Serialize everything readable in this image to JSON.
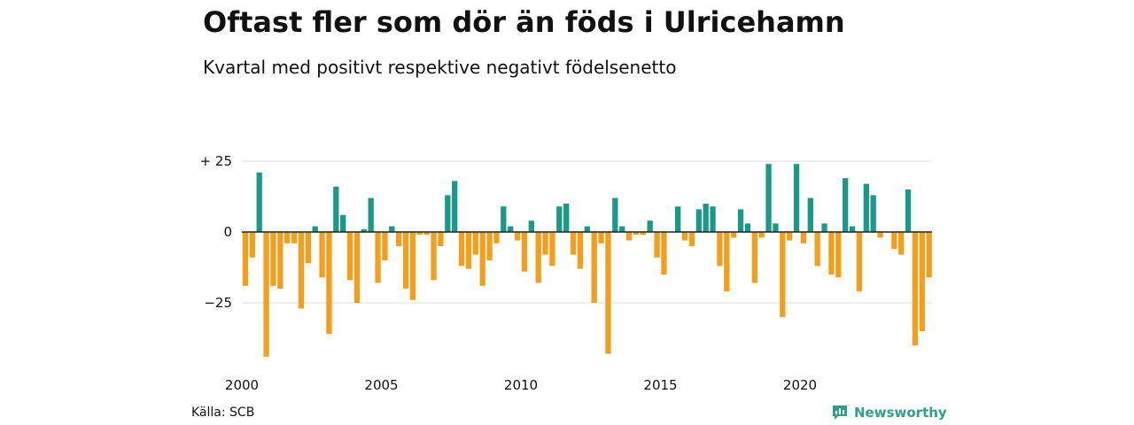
{
  "header": {
    "title": "Oftast fler som dör än föds i Ulricehamn",
    "subtitle": "Kvartal med positivt respektive negativt födelsenetto"
  },
  "footer": {
    "source": "Källa: SCB",
    "brand": "Newsworthy",
    "brand_icon": "newsworthy-logo-icon"
  },
  "colors": {
    "positive": "#1a9988",
    "negative": "#f59e1b",
    "grid": "#dddddd",
    "axis": "#222222"
  },
  "chart_data": {
    "type": "bar",
    "title": "Oftast fler som dör än föds i Ulricehamn",
    "subtitle": "Kvartal med positivt respektive negativt födelsenetto",
    "x_start": "2000-Q1",
    "values": [
      -19,
      -9,
      21,
      -44,
      -19,
      -20,
      -4,
      -4,
      -27,
      -11,
      2,
      -16,
      -36,
      16,
      6,
      -17,
      -25,
      1,
      12,
      -18,
      -10,
      2,
      -5,
      -20,
      -24,
      -1,
      -1,
      -17,
      -5,
      13,
      18,
      -12,
      -13,
      -8,
      -19,
      -10,
      -4,
      9,
      2,
      -3,
      -14,
      4,
      -18,
      -8,
      -12,
      9,
      10,
      -8,
      -13,
      2,
      -25,
      -4,
      -43,
      12,
      2,
      -3,
      -1,
      -1,
      4,
      -9,
      -15,
      0,
      9,
      -3,
      -5,
      8,
      10,
      9,
      -12,
      -21,
      -2,
      8,
      3,
      -18,
      -2,
      24,
      3,
      -30,
      -3,
      24,
      -4,
      12,
      -12,
      3,
      -15,
      -16,
      19,
      2,
      -21,
      17,
      13,
      -2,
      0,
      -6,
      -8,
      15,
      -40,
      -35,
      -16
    ],
    "y_ticks": [
      {
        "value": 25,
        "label": "+ 25"
      },
      {
        "value": 0,
        "label": "0"
      },
      {
        "value": -25,
        "label": "−25"
      }
    ],
    "x_ticks": [
      {
        "index": 0,
        "label": "2000"
      },
      {
        "index": 20,
        "label": "2005"
      },
      {
        "index": 40,
        "label": "2010"
      },
      {
        "index": 60,
        "label": "2015"
      },
      {
        "index": 80,
        "label": "2020"
      }
    ],
    "ylim": [
      -44,
      25
    ],
    "grid": true,
    "xlabel": "",
    "ylabel": ""
  }
}
